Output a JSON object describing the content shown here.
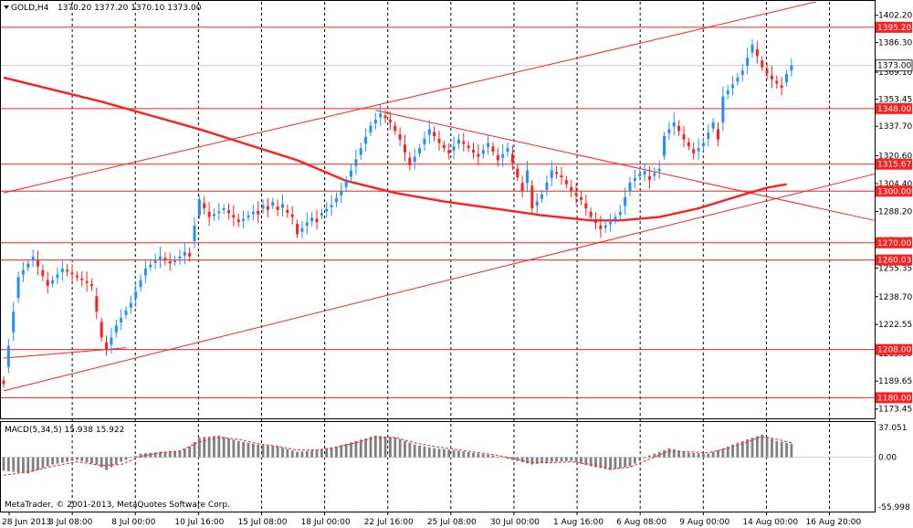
{
  "header": {
    "symbol": "GOLD,H4",
    "ohlc": "1370.20 1377.20 1370.10 1373.00"
  },
  "macd_header": {
    "text": "MACD(5,34,5) 15.938 15.922"
  },
  "copyright": "MetaTrader, © 2001-2013, MetaQuotes Software Corp.",
  "chart_data": [
    {
      "type": "candlestick",
      "title": "GOLD,H4",
      "ylim": [
        1168,
        1410
      ],
      "last_price": 1373.0,
      "price_scale_labels": [
        "1402.20",
        "1386.30",
        "1369.10",
        "1353.45",
        "1337.70",
        "1320.60",
        "1304.40",
        "1288.20",
        "1271.45",
        "1255.35",
        "1238.70",
        "1222.55",
        "1205.80",
        "1189.65",
        "1173.45"
      ],
      "horizontal_levels": [
        {
          "value": 1395.2,
          "label": "1395.20"
        },
        {
          "value": 1348.0,
          "label": "1348.00"
        },
        {
          "value": 1315.67,
          "label": "1315.67"
        },
        {
          "value": 1300.0,
          "label": "1300.00"
        },
        {
          "value": 1270.0,
          "label": "1270.00"
        },
        {
          "value": 1260.03,
          "label": "1260.03"
        },
        {
          "value": 1208.0,
          "label": "1208.00"
        },
        {
          "value": 1180.0,
          "label": "1180.00"
        }
      ],
      "x_labels": [
        "28 Jun 2013",
        "3 Jul 08:00",
        "8 Jul 00:00",
        "10 Jul 16:00",
        "15 Jul 08:00",
        "18 Jul 00:00",
        "22 Jul 16:00",
        "25 Jul 08:00",
        "30 Jul 00:00",
        "1 Aug 16:00",
        "6 Aug 08:00",
        "9 Aug 00:00",
        "14 Aug 00:00",
        "16 Aug 20:00"
      ],
      "price_path": [
        [
          0,
          1190
        ],
        [
          3,
          1250
        ],
        [
          6,
          1262
        ],
        [
          9,
          1245
        ],
        [
          12,
          1255
        ],
        [
          15,
          1250
        ],
        [
          18,
          1245
        ],
        [
          20,
          1215
        ],
        [
          21,
          1208
        ],
        [
          23,
          1222
        ],
        [
          26,
          1235
        ],
        [
          29,
          1255
        ],
        [
          32,
          1262
        ],
        [
          34,
          1258
        ],
        [
          36,
          1262
        ],
        [
          38,
          1265
        ],
        [
          40,
          1295
        ],
        [
          42,
          1285
        ],
        [
          45,
          1290
        ],
        [
          48,
          1282
        ],
        [
          51,
          1288
        ],
        [
          54,
          1292
        ],
        [
          57,
          1290
        ],
        [
          59,
          1285
        ],
        [
          60,
          1275
        ],
        [
          62,
          1282
        ],
        [
          64,
          1285
        ],
        [
          67,
          1292
        ],
        [
          69,
          1300
        ],
        [
          71,
          1312
        ],
        [
          73,
          1325
        ],
        [
          75,
          1338
        ],
        [
          77,
          1345
        ],
        [
          79,
          1340
        ],
        [
          81,
          1330
        ],
        [
          83,
          1315
        ],
        [
          85,
          1325
        ],
        [
          87,
          1336
        ],
        [
          89,
          1328
        ],
        [
          91,
          1322
        ],
        [
          93,
          1330
        ],
        [
          95,
          1325
        ],
        [
          97,
          1320
        ],
        [
          99,
          1328
        ],
        [
          101,
          1318
        ],
        [
          103,
          1325
        ],
        [
          105,
          1308
        ],
        [
          106,
          1300
        ],
        [
          107,
          1312
        ],
        [
          108,
          1290
        ],
        [
          110,
          1298
        ],
        [
          112,
          1312
        ],
        [
          114,
          1308
        ],
        [
          116,
          1300
        ],
        [
          118,
          1295
        ],
        [
          120,
          1285
        ],
        [
          122,
          1278
        ],
        [
          124,
          1282
        ],
        [
          126,
          1288
        ],
        [
          128,
          1305
        ],
        [
          130,
          1310
        ],
        [
          132,
          1308
        ],
        [
          134,
          1313
        ],
        [
          135,
          1332
        ],
        [
          137,
          1340
        ],
        [
          139,
          1330
        ],
        [
          141,
          1322
        ],
        [
          143,
          1328
        ],
        [
          145,
          1340
        ],
        [
          146,
          1330
        ],
        [
          147,
          1355
        ],
        [
          149,
          1362
        ],
        [
          151,
          1370
        ],
        [
          153,
          1385
        ],
        [
          155,
          1372
        ],
        [
          157,
          1365
        ],
        [
          159,
          1360
        ],
        [
          160,
          1368
        ],
        [
          161,
          1373
        ]
      ],
      "moving_average": [
        [
          0,
          1366
        ],
        [
          20,
          1352
        ],
        [
          40,
          1336
        ],
        [
          60,
          1318
        ],
        [
          70,
          1306
        ],
        [
          80,
          1299
        ],
        [
          90,
          1294
        ],
        [
          100,
          1290
        ],
        [
          110,
          1286
        ],
        [
          120,
          1283
        ],
        [
          126,
          1283
        ],
        [
          134,
          1285
        ],
        [
          142,
          1290
        ],
        [
          150,
          1297
        ],
        [
          156,
          1302
        ],
        [
          160,
          1304
        ]
      ],
      "trend_lines": [
        {
          "p1": [
            0,
            1299
          ],
          "p2": [
            166,
            1410
          ]
        },
        {
          "p1": [
            0,
            1184
          ],
          "p2": [
            178,
            1310
          ]
        },
        {
          "p1": [
            76,
            1347
          ],
          "p2": [
            178,
            1283
          ]
        },
        {
          "p1": [
            0,
            1203
          ],
          "p2": [
            25,
            1209
          ]
        }
      ]
    },
    {
      "type": "bar",
      "title": "MACD(5,34,5) 15.938 15.922",
      "ylim": [
        -60,
        40
      ],
      "scale_labels": [
        "37.051",
        "0.00",
        "-55.998"
      ],
      "histogram": [
        [
          0,
          -15
        ],
        [
          5,
          -18
        ],
        [
          10,
          -8
        ],
        [
          15,
          -3
        ],
        [
          19,
          -8
        ],
        [
          21,
          -14
        ],
        [
          24,
          -5
        ],
        [
          28,
          4
        ],
        [
          32,
          6
        ],
        [
          36,
          7
        ],
        [
          38,
          12
        ],
        [
          40,
          22
        ],
        [
          44,
          24
        ],
        [
          48,
          18
        ],
        [
          52,
          14
        ],
        [
          56,
          12
        ],
        [
          60,
          6
        ],
        [
          64,
          8
        ],
        [
          68,
          12
        ],
        [
          72,
          18
        ],
        [
          76,
          24
        ],
        [
          80,
          22
        ],
        [
          84,
          14
        ],
        [
          88,
          10
        ],
        [
          92,
          8
        ],
        [
          96,
          5
        ],
        [
          100,
          2
        ],
        [
          104,
          -3
        ],
        [
          108,
          -8
        ],
        [
          112,
          -5
        ],
        [
          116,
          -4
        ],
        [
          120,
          -10
        ],
        [
          124,
          -14
        ],
        [
          128,
          -10
        ],
        [
          132,
          2
        ],
        [
          136,
          10
        ],
        [
          140,
          5
        ],
        [
          144,
          4
        ],
        [
          148,
          12
        ],
        [
          152,
          20
        ],
        [
          155,
          25
        ],
        [
          158,
          18
        ],
        [
          161,
          15
        ]
      ],
      "signal": [
        [
          0,
          -20
        ],
        [
          5,
          -16
        ],
        [
          10,
          -10
        ],
        [
          15,
          -5
        ],
        [
          20,
          -9
        ],
        [
          24,
          -8
        ],
        [
          28,
          1
        ],
        [
          32,
          5
        ],
        [
          36,
          7
        ],
        [
          40,
          17
        ],
        [
          44,
          22
        ],
        [
          48,
          20
        ],
        [
          52,
          15
        ],
        [
          56,
          12
        ],
        [
          60,
          8
        ],
        [
          64,
          8
        ],
        [
          68,
          11
        ],
        [
          72,
          16
        ],
        [
          76,
          22
        ],
        [
          80,
          22
        ],
        [
          84,
          16
        ],
        [
          88,
          12
        ],
        [
          92,
          9
        ],
        [
          96,
          6
        ],
        [
          100,
          3
        ],
        [
          104,
          -1
        ],
        [
          108,
          -6
        ],
        [
          112,
          -6
        ],
        [
          116,
          -5
        ],
        [
          120,
          -8
        ],
        [
          124,
          -13
        ],
        [
          128,
          -11
        ],
        [
          132,
          -2
        ],
        [
          136,
          7
        ],
        [
          140,
          6
        ],
        [
          144,
          5
        ],
        [
          148,
          10
        ],
        [
          152,
          17
        ],
        [
          155,
          23
        ],
        [
          158,
          20
        ],
        [
          161,
          16
        ]
      ]
    }
  ],
  "colors": {
    "bull": "#1e90ff",
    "bear": "#ff1f1f",
    "level": "#ff1f1f",
    "ma": "#ff1f1f",
    "macd_hist": "#808080",
    "macd_signal": "#ff1f1f",
    "current_label_bg": "#ffffff"
  }
}
